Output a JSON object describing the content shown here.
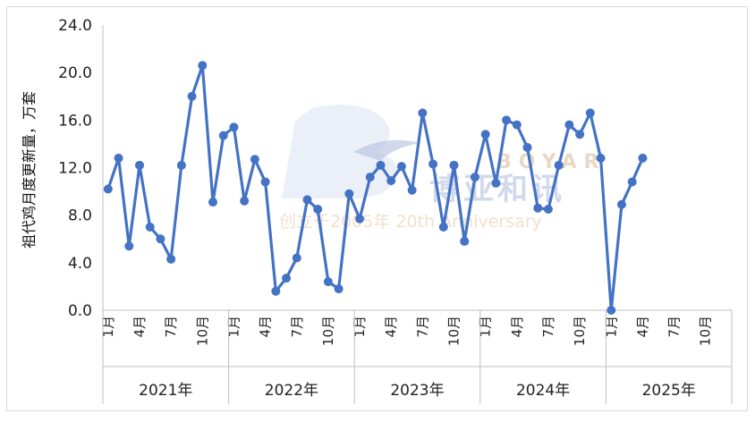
{
  "chart_data": {
    "type": "line",
    "ylabel": "祖代鸡月度更新量，万套",
    "ylim": [
      0,
      24
    ],
    "yticks": [
      "0.0",
      "4.0",
      "8.0",
      "12.0",
      "16.0",
      "20.0",
      "24.0"
    ],
    "grid": false,
    "legend": "none",
    "line_color": "#4472c4",
    "years": [
      "2021年",
      "2022年",
      "2023年",
      "2024年",
      "2025年"
    ],
    "month_ticks": [
      "1月",
      "4月",
      "7月",
      "10月"
    ],
    "values": [
      10.2,
      12.8,
      5.4,
      12.2,
      7.0,
      6.0,
      4.3,
      12.2,
      18.0,
      20.6,
      9.1,
      14.7,
      15.4,
      9.2,
      12.7,
      10.8,
      1.6,
      2.7,
      4.4,
      9.3,
      8.5,
      2.4,
      1.8,
      9.8,
      7.7,
      11.2,
      12.2,
      10.9,
      12.1,
      10.1,
      16.6,
      12.3,
      7.0,
      12.2,
      5.8,
      11.2,
      14.8,
      10.7,
      16.0,
      15.6,
      13.7,
      8.6,
      8.5,
      12.2,
      15.6,
      14.8,
      16.6,
      12.8,
      0.0,
      8.9,
      10.8,
      12.8
    ]
  },
  "watermark": {
    "cn": "博亚和讯",
    "en": "创立于2005年 20th Anniversary",
    "brand": "BOYAR"
  }
}
